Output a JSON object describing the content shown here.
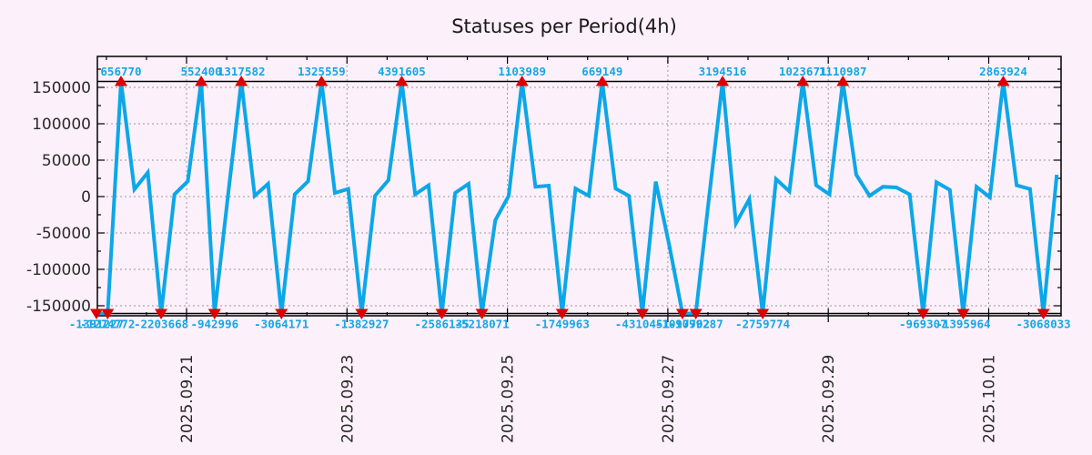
{
  "title": "Statuses per Period(4h)",
  "chart_data": {
    "type": "line",
    "series_name": "statuses-per-4h",
    "start_time": "2025-09-19 20:00",
    "step_hours": 4,
    "values": [
      -1391227,
      -1274772,
      656770,
      10000,
      33000,
      -2203668,
      3000,
      21000,
      552400,
      -942996,
      1000,
      1317582,
      1000,
      17500,
      -3064171,
      3000,
      21000,
      1325559,
      5000,
      10500,
      -1382927,
      1000,
      22500,
      4391605,
      3000,
      15500,
      -2586135,
      5000,
      17500,
      -5218071,
      -32500,
      1000,
      1103989,
      13500,
      15000,
      -1749963,
      11000,
      1000,
      669149,
      11000,
      1000,
      -4310451,
      20500,
      -66000,
      -1097702,
      -1099287,
      0,
      3194516,
      -37000,
      -3500,
      -2759774,
      24000,
      7000,
      1023671,
      15500,
      3000,
      1110987,
      30000,
      1000,
      13500,
      12500,
      3000,
      -969307,
      19600,
      9100,
      -1395964,
      13400,
      -1000,
      2863924,
      15400,
      10400,
      -3068033,
      30000
    ],
    "y_ticks": [
      150000,
      100000,
      50000,
      0,
      -50000,
      -100000,
      -150000
    ],
    "x_ticks": [
      "2025.09.21",
      "2025.09.23",
      "2025.09.25",
      "2025.09.27",
      "2025.09.29",
      "2025.10.01"
    ],
    "ylim": [
      -163750,
      192500
    ],
    "clip_limits": [
      -160625,
      158125
    ],
    "grid": true,
    "legend": "none",
    "colors": {
      "line": "#0ca7e8",
      "marker": "#dd0000",
      "value_label": "#14a7e6",
      "background": "#fcf0fa",
      "grid": "#9a9a9a",
      "axis": "#000000",
      "tick_text": "#2a2a2a"
    }
  }
}
